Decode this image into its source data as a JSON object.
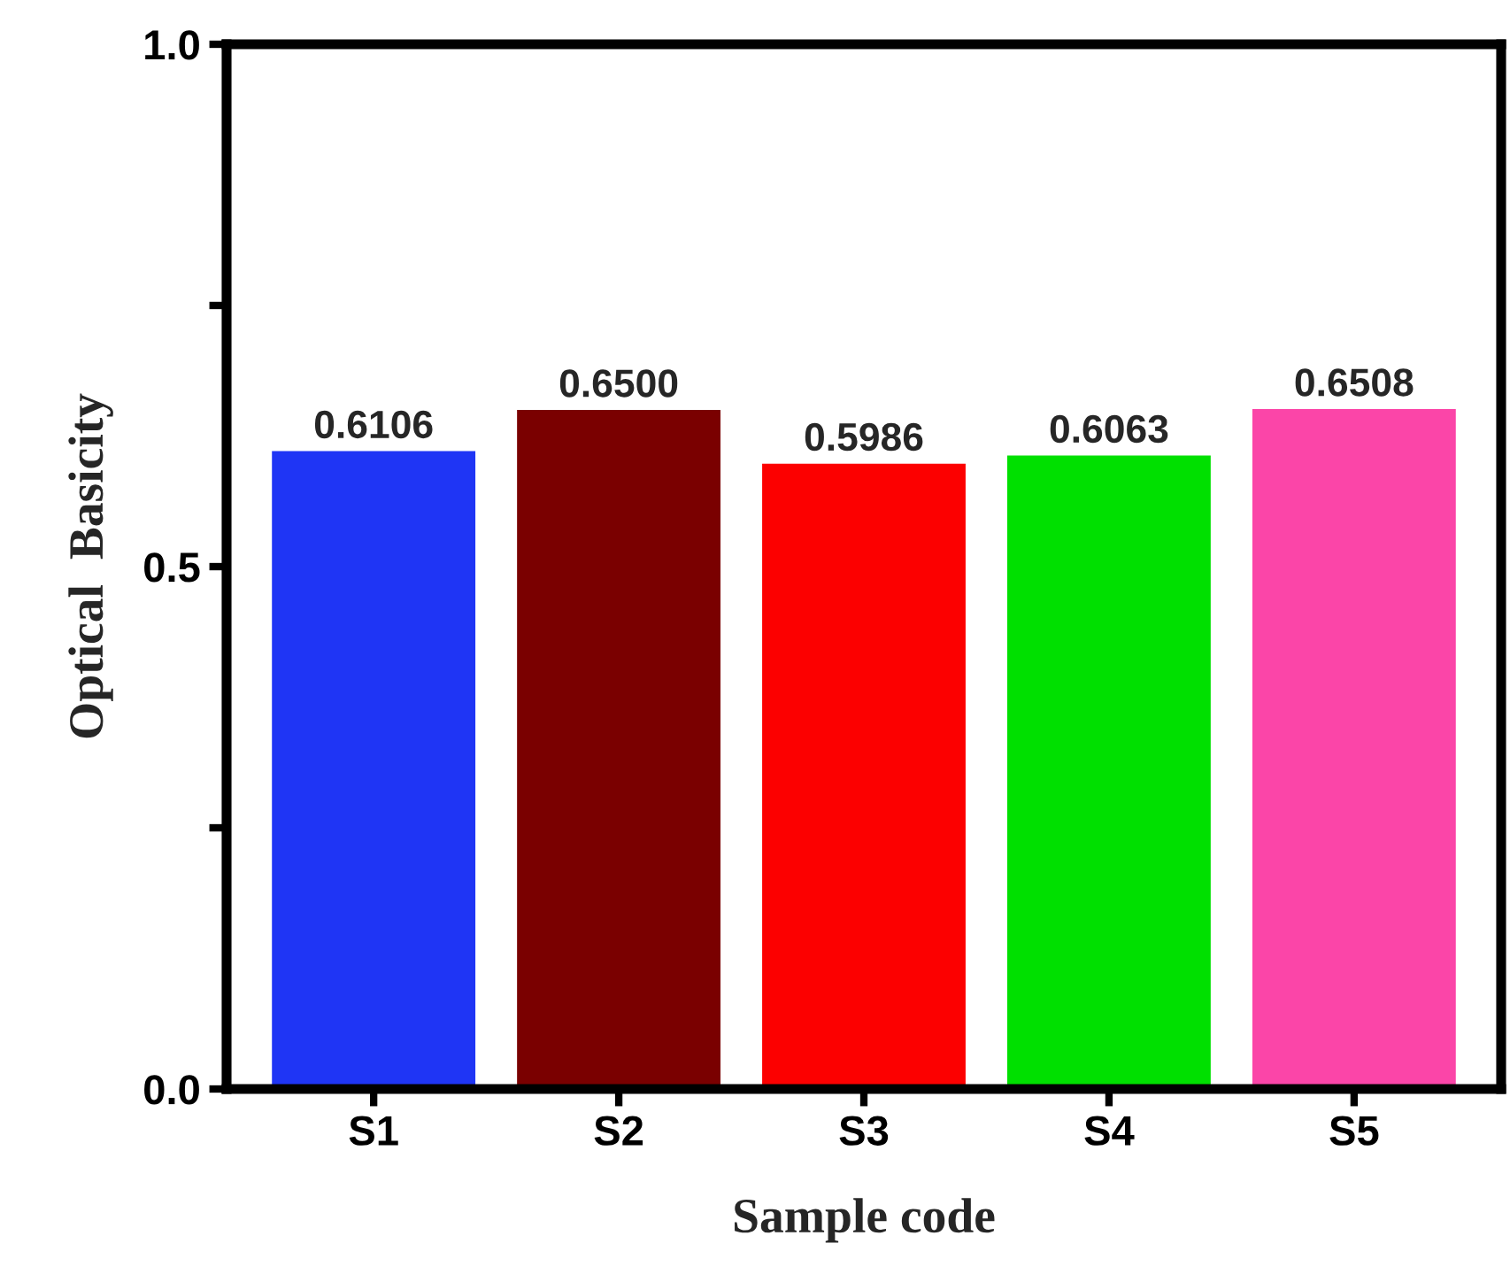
{
  "chart_data": {
    "type": "bar",
    "xlabel": "Sample code",
    "ylabel": "Optical  Basicity",
    "categories": [
      "S1",
      "S2",
      "S3",
      "S4",
      "S5"
    ],
    "values": [
      0.6106,
      0.65,
      0.5986,
      0.6063,
      0.6508
    ],
    "value_labels": [
      "0.6106",
      "0.6500",
      "0.5986",
      "0.6063",
      "0.6508"
    ],
    "colors": [
      "#1f35f5",
      "#7a0000",
      "#fc0000",
      "#00e000",
      "#fb45a8"
    ],
    "ylim": [
      0,
      1
    ],
    "yticks": [
      {
        "value": 0.0,
        "label": "0.0"
      },
      {
        "value": 0.25,
        "label": null
      },
      {
        "value": 0.5,
        "label": "0.5"
      },
      {
        "value": 0.75,
        "label": null
      },
      {
        "value": 1.0,
        "label": "1.0"
      }
    ],
    "grid": false,
    "legend": false
  }
}
